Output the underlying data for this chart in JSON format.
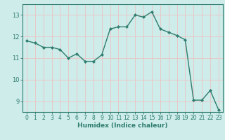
{
  "x": [
    0,
    1,
    2,
    3,
    4,
    5,
    6,
    7,
    8,
    9,
    10,
    11,
    12,
    13,
    14,
    15,
    16,
    17,
    18,
    19,
    20,
    21,
    22,
    23
  ],
  "y": [
    11.8,
    11.7,
    11.5,
    11.5,
    11.4,
    11.0,
    11.2,
    10.85,
    10.85,
    11.15,
    12.35,
    12.45,
    12.45,
    13.0,
    12.9,
    13.15,
    12.35,
    12.2,
    12.05,
    11.85,
    9.05,
    9.05,
    9.5,
    8.6
  ],
  "line_color": "#2e7d6e",
  "marker": "D",
  "markersize": 2.2,
  "linewidth": 1.0,
  "bg_color": "#ceecea",
  "grid_color": "#e8c8c8",
  "xlabel": "Humidex (Indice chaleur)",
  "xlim": [
    -0.5,
    23.5
  ],
  "ylim": [
    8.5,
    13.5
  ],
  "yticks": [
    9,
    10,
    11,
    12,
    13
  ],
  "xticks": [
    0,
    1,
    2,
    3,
    4,
    5,
    6,
    7,
    8,
    9,
    10,
    11,
    12,
    13,
    14,
    15,
    16,
    17,
    18,
    19,
    20,
    21,
    22,
    23
  ],
  "tick_color": "#2e7d6e",
  "label_color": "#2e7d6e",
  "xlabel_fontsize": 6.5,
  "tick_fontsize": 5.5,
  "ylabel_fontsize": 6
}
